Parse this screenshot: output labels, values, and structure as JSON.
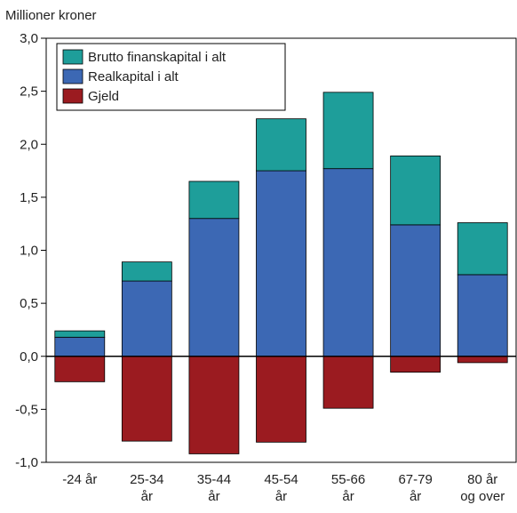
{
  "chart_data": {
    "type": "bar",
    "stacked": true,
    "ylabel": "Millioner kroner",
    "ylim": [
      -1.0,
      3.0
    ],
    "yticks": [
      -1.0,
      -0.5,
      0.0,
      0.5,
      1.0,
      1.5,
      2.0,
      2.5,
      3.0
    ],
    "ytick_labels": [
      "-1,0",
      "-0,5",
      "0,0",
      "0,5",
      "1,0",
      "1,5",
      "2,0",
      "2,5",
      "3,0"
    ],
    "categories": [
      [
        "-24 år"
      ],
      [
        "25-34",
        "år"
      ],
      [
        "35-44",
        "år"
      ],
      [
        "45-54",
        "år"
      ],
      [
        "55-66",
        "år"
      ],
      [
        "67-79",
        "år"
      ],
      [
        "80 år",
        "og over"
      ]
    ],
    "series": [
      {
        "name": "Realkapital i alt",
        "color": "#3c68b4",
        "values": [
          0.18,
          0.71,
          1.3,
          1.75,
          1.77,
          1.24,
          0.77
        ]
      },
      {
        "name": "Brutto finanskapital i alt",
        "color": "#1e9e9a",
        "values": [
          0.06,
          0.18,
          0.35,
          0.49,
          0.72,
          0.65,
          0.49
        ]
      },
      {
        "name": "Gjeld",
        "color": "#9b1b20",
        "values": [
          -0.24,
          -0.8,
          -0.92,
          -0.81,
          -0.49,
          -0.15,
          -0.06
        ]
      }
    ],
    "legend": {
      "position": "top-left",
      "order": [
        "Brutto finanskapital i alt",
        "Realkapital i alt",
        "Gjeld"
      ]
    },
    "grid": false
  }
}
